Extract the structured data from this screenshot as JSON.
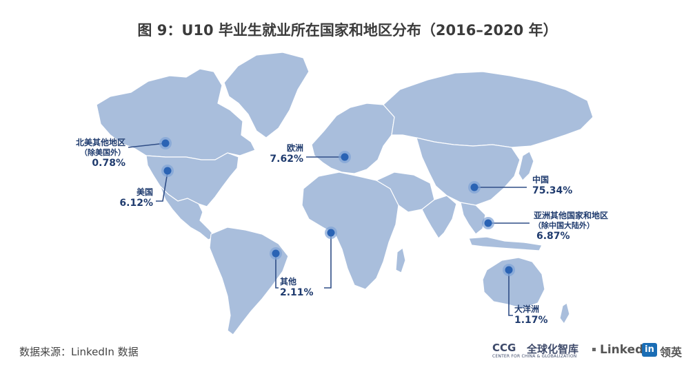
{
  "title": "图 9：U10 毕业生就业所在国家和地区分布（2016–2020 年）",
  "source": "数据来源：LinkedIn 数据",
  "logos": {
    "ccg": "CCG",
    "ccg_sub": "CENTER FOR CHINA & GLOBALIZATION",
    "ccg_cn": "全球化智库",
    "linkedin_text": "Linked",
    "linkedin_box": "in",
    "linkedin_cn": "领英"
  },
  "colors": {
    "land": "#a9bedc",
    "marker": "#2a63b4",
    "marker_halo": "#7fa2d6",
    "line": "#2f4d86",
    "label": "#1f3b6e"
  },
  "regions": {
    "north_america_other": {
      "name": "北美其他地区",
      "sub": "（除美国外）",
      "pct": "0.78%"
    },
    "usa": {
      "name": "美国",
      "pct": "6.12%"
    },
    "europe": {
      "name": "欧洲",
      "pct": "7.62%"
    },
    "china": {
      "name": "中国",
      "pct": "75.34%"
    },
    "asia_other": {
      "name": "亚洲其他国家和地区",
      "sub": "（除中国大陆外）",
      "pct": "6.87%"
    },
    "other": {
      "name": "其他",
      "pct": "2.11%"
    },
    "oceania": {
      "name": "大洋洲",
      "pct": "1.17%"
    }
  }
}
